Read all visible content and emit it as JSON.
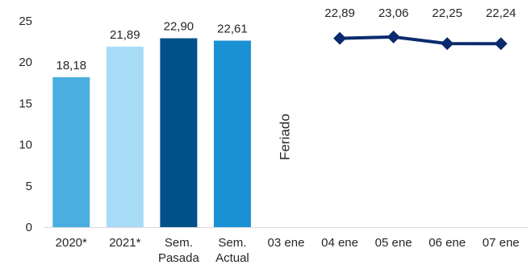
{
  "chart_data": {
    "type": "bar",
    "title": "",
    "xlabel": "",
    "ylabel": "",
    "ylim": [
      0,
      25
    ],
    "y_ticks": [
      0,
      5,
      10,
      15,
      20,
      25
    ],
    "grid": false,
    "legend": "none",
    "categories": [
      [
        "2020*"
      ],
      [
        "2021*"
      ],
      [
        "Sem.",
        "Pasada"
      ],
      [
        "Sem.",
        "Actual"
      ],
      [
        "03 ene"
      ],
      [
        "04 ene"
      ],
      [
        "05 ene"
      ],
      [
        "06 ene"
      ],
      [
        "07 ene"
      ]
    ],
    "bars": [
      {
        "category_index": 0,
        "value": 18.18,
        "label": "18,18",
        "color": "#4aaee0"
      },
      {
        "category_index": 1,
        "value": 21.89,
        "label": "21,89",
        "color": "#a8dcf6"
      },
      {
        "category_index": 2,
        "value": 22.9,
        "label": "22,90",
        "color": "#005189"
      },
      {
        "category_index": 3,
        "value": 22.61,
        "label": "22,61",
        "color": "#1991d2"
      }
    ],
    "line": {
      "color": "#0b2a6e",
      "points": [
        {
          "category_index": 5,
          "value": 22.89,
          "label": "22,89"
        },
        {
          "category_index": 6,
          "value": 23.06,
          "label": "23,06"
        },
        {
          "category_index": 7,
          "value": 22.25,
          "label": "22,25"
        },
        {
          "category_index": 8,
          "value": 22.24,
          "label": "22,24"
        }
      ]
    },
    "annotations": [
      {
        "category_index": 4,
        "text": "Feriado"
      }
    ]
  }
}
